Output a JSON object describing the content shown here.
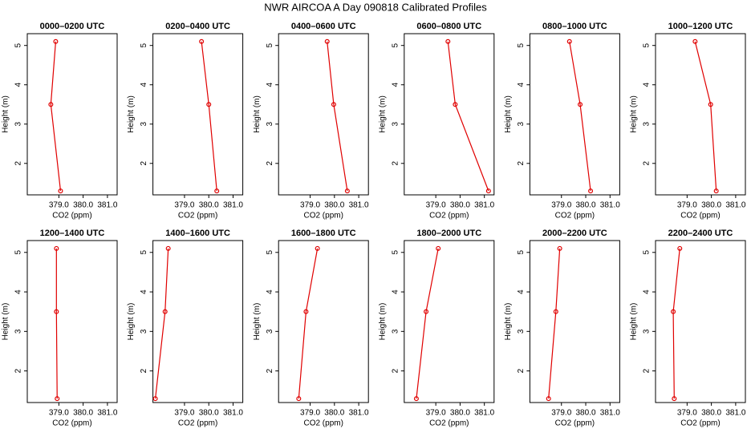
{
  "title": "NWR AIRCOA A  Day 090818  Calibrated Profiles",
  "chart_data": [
    {
      "type": "line",
      "title": "0000–0200 UTC",
      "xlabel": "CO2 (ppm)",
      "ylabel": "Height (m)",
      "color": "#e00000",
      "x": [
        378.87,
        378.67,
        379.07
      ],
      "values": [
        5.1,
        3.5,
        1.3
      ],
      "xlim": [
        377.7,
        381.4
      ],
      "ylim": [
        1.2,
        5.3
      ],
      "xticks": [
        {
          "value": 379,
          "label": "379.0"
        },
        {
          "value": 380,
          "label": "380.0"
        },
        {
          "value": 381,
          "label": "381.0"
        }
      ],
      "yticks": [
        2,
        3,
        4,
        5
      ]
    },
    {
      "type": "line",
      "title": "0200–0400 UTC",
      "xlabel": "CO2 (ppm)",
      "ylabel": "Height (m)",
      "color": "#e00000",
      "x": [
        379.7,
        380.0,
        380.33
      ],
      "values": [
        5.1,
        3.5,
        1.3
      ],
      "xlim": [
        377.7,
        381.4
      ],
      "ylim": [
        1.2,
        5.3
      ],
      "xticks": [
        {
          "value": 379,
          "label": "379.0"
        },
        {
          "value": 380,
          "label": "380.0"
        },
        {
          "value": 381,
          "label": "381.0"
        }
      ],
      "yticks": [
        2,
        3,
        4,
        5
      ]
    },
    {
      "type": "line",
      "title": "0400–0600 UTC",
      "xlabel": "CO2 (ppm)",
      "ylabel": "Height (m)",
      "color": "#e00000",
      "x": [
        379.7,
        379.97,
        380.53
      ],
      "values": [
        5.1,
        3.5,
        1.3
      ],
      "xlim": [
        377.7,
        381.4
      ],
      "ylim": [
        1.2,
        5.3
      ],
      "xticks": [
        {
          "value": 379,
          "label": "379.0"
        },
        {
          "value": 380,
          "label": "380.0"
        },
        {
          "value": 381,
          "label": "381.0"
        }
      ],
      "yticks": [
        2,
        3,
        4,
        5
      ]
    },
    {
      "type": "line",
      "title": "0600–0800 UTC",
      "xlabel": "CO2 (ppm)",
      "ylabel": "Height (m)",
      "color": "#e00000",
      "x": [
        379.5,
        379.8,
        381.17
      ],
      "values": [
        5.1,
        3.5,
        1.3
      ],
      "xlim": [
        377.7,
        381.4
      ],
      "ylim": [
        1.2,
        5.3
      ],
      "xticks": [
        {
          "value": 379,
          "label": "379.0"
        },
        {
          "value": 380,
          "label": "380.0"
        },
        {
          "value": 381,
          "label": "381.0"
        }
      ],
      "yticks": [
        2,
        3,
        4,
        5
      ]
    },
    {
      "type": "line",
      "title": "0800–1000 UTC",
      "xlabel": "CO2 (ppm)",
      "ylabel": "Height (m)",
      "color": "#e00000",
      "x": [
        379.33,
        379.77,
        380.2
      ],
      "values": [
        5.1,
        3.5,
        1.3
      ],
      "xlim": [
        377.7,
        381.4
      ],
      "ylim": [
        1.2,
        5.3
      ],
      "xticks": [
        {
          "value": 379,
          "label": "379.0"
        },
        {
          "value": 380,
          "label": "380.0"
        },
        {
          "value": 381,
          "label": "381.0"
        }
      ],
      "yticks": [
        2,
        3,
        4,
        5
      ]
    },
    {
      "type": "line",
      "title": "1000–1200 UTC",
      "xlabel": "CO2 (ppm)",
      "ylabel": "Height (m)",
      "color": "#e00000",
      "x": [
        379.33,
        379.97,
        380.2
      ],
      "values": [
        5.1,
        3.5,
        1.3
      ],
      "xlim": [
        377.7,
        381.4
      ],
      "ylim": [
        1.2,
        5.3
      ],
      "xticks": [
        {
          "value": 379,
          "label": "379.0"
        },
        {
          "value": 380,
          "label": "380.0"
        },
        {
          "value": 381,
          "label": "381.0"
        }
      ],
      "yticks": [
        2,
        3,
        4,
        5
      ]
    },
    {
      "type": "line",
      "title": "1200–1400 UTC",
      "xlabel": "CO2 (ppm)",
      "ylabel": "Height (m)",
      "color": "#e00000",
      "x": [
        378.9,
        378.9,
        378.93
      ],
      "values": [
        5.1,
        3.5,
        1.3
      ],
      "xlim": [
        377.7,
        381.4
      ],
      "ylim": [
        1.2,
        5.3
      ],
      "xticks": [
        {
          "value": 379,
          "label": "379.0"
        },
        {
          "value": 380,
          "label": "380.0"
        },
        {
          "value": 381,
          "label": "381.0"
        }
      ],
      "yticks": [
        2,
        3,
        4,
        5
      ]
    },
    {
      "type": "line",
      "title": "1400–1600 UTC",
      "xlabel": "CO2 (ppm)",
      "ylabel": "Height (m)",
      "color": "#e00000",
      "x": [
        378.33,
        378.2,
        377.8
      ],
      "values": [
        5.1,
        3.5,
        1.3
      ],
      "xlim": [
        377.7,
        381.4
      ],
      "ylim": [
        1.2,
        5.3
      ],
      "xticks": [
        {
          "value": 379,
          "label": "379.0"
        },
        {
          "value": 380,
          "label": "380.0"
        },
        {
          "value": 381,
          "label": "381.0"
        }
      ],
      "yticks": [
        2,
        3,
        4,
        5
      ]
    },
    {
      "type": "line",
      "title": "1600–1800 UTC",
      "xlabel": "CO2 (ppm)",
      "ylabel": "Height (m)",
      "color": "#e00000",
      "x": [
        379.3,
        378.83,
        378.53
      ],
      "values": [
        5.1,
        3.5,
        1.3
      ],
      "xlim": [
        377.7,
        381.4
      ],
      "ylim": [
        1.2,
        5.3
      ],
      "xticks": [
        {
          "value": 379,
          "label": "379.0"
        },
        {
          "value": 380,
          "label": "380.0"
        },
        {
          "value": 381,
          "label": "381.0"
        }
      ],
      "yticks": [
        2,
        3,
        4,
        5
      ]
    },
    {
      "type": "line",
      "title": "1800–2000 UTC",
      "xlabel": "CO2 (ppm)",
      "ylabel": "Height (m)",
      "color": "#e00000",
      "x": [
        379.1,
        378.6,
        378.2
      ],
      "values": [
        5.1,
        3.5,
        1.3
      ],
      "xlim": [
        377.7,
        381.4
      ],
      "ylim": [
        1.2,
        5.3
      ],
      "xticks": [
        {
          "value": 379,
          "label": "379.0"
        },
        {
          "value": 380,
          "label": "380.0"
        },
        {
          "value": 381,
          "label": "381.0"
        }
      ],
      "yticks": [
        2,
        3,
        4,
        5
      ]
    },
    {
      "type": "line",
      "title": "2000–2200 UTC",
      "xlabel": "CO2 (ppm)",
      "ylabel": "Height (m)",
      "color": "#e00000",
      "x": [
        378.93,
        378.77,
        378.47
      ],
      "values": [
        5.1,
        3.5,
        1.3
      ],
      "xlim": [
        377.7,
        381.4
      ],
      "ylim": [
        1.2,
        5.3
      ],
      "xticks": [
        {
          "value": 379,
          "label": "379.0"
        },
        {
          "value": 380,
          "label": "380.0"
        },
        {
          "value": 381,
          "label": "381.0"
        }
      ],
      "yticks": [
        2,
        3,
        4,
        5
      ]
    },
    {
      "type": "line",
      "title": "2200–2400 UTC",
      "xlabel": "CO2 (ppm)",
      "ylabel": "Height (m)",
      "color": "#e00000",
      "x": [
        378.7,
        378.43,
        378.47
      ],
      "values": [
        5.1,
        3.5,
        1.3
      ],
      "xlim": [
        377.7,
        381.4
      ],
      "ylim": [
        1.2,
        5.3
      ],
      "xticks": [
        {
          "value": 379,
          "label": "379.0"
        },
        {
          "value": 380,
          "label": "380.0"
        },
        {
          "value": 381,
          "label": "381.0"
        }
      ],
      "yticks": [
        2,
        3,
        4,
        5
      ]
    }
  ]
}
